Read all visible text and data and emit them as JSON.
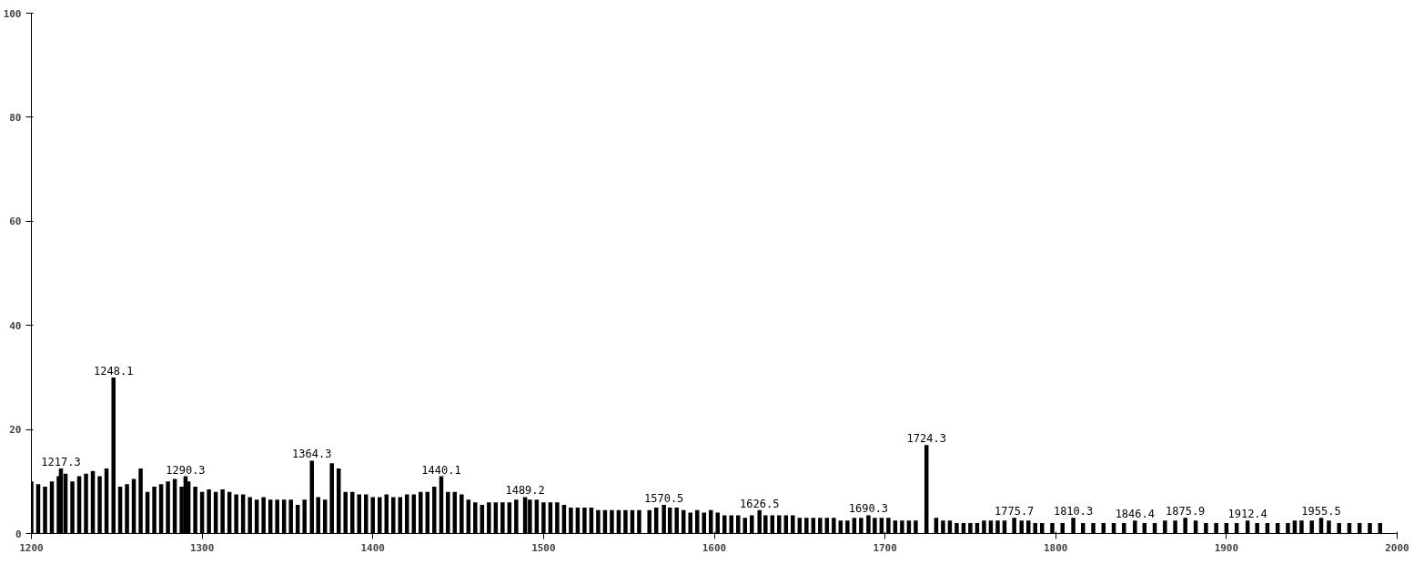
{
  "chart_data": {
    "type": "bar",
    "x": [
      1200,
      1204,
      1208,
      1212,
      1216,
      1217.3,
      1220,
      1224,
      1228,
      1232,
      1236,
      1240,
      1244,
      1248.1,
      1252,
      1256,
      1260,
      1264,
      1268,
      1272,
      1276,
      1280,
      1284,
      1288,
      1290.3,
      1292,
      1296,
      1300,
      1304,
      1308,
      1312,
      1316,
      1320,
      1324,
      1328,
      1332,
      1336,
      1340,
      1344,
      1348,
      1352,
      1356,
      1360,
      1364.3,
      1368,
      1372,
      1376,
      1380,
      1384,
      1388,
      1392,
      1396,
      1400,
      1404,
      1408,
      1412,
      1416,
      1420,
      1424,
      1428,
      1432,
      1436,
      1440.1,
      1444,
      1448,
      1452,
      1456,
      1460,
      1464,
      1468,
      1472,
      1476,
      1480,
      1484,
      1489.2,
      1492,
      1496,
      1500,
      1504,
      1508,
      1512,
      1516,
      1520,
      1524,
      1528,
      1532,
      1536,
      1540,
      1544,
      1548,
      1552,
      1556,
      1562,
      1566,
      1570.5,
      1574,
      1578,
      1582,
      1586,
      1590,
      1594,
      1598,
      1602,
      1606,
      1610,
      1614,
      1618,
      1622,
      1626.5,
      1630,
      1634,
      1638,
      1642,
      1646,
      1650,
      1654,
      1658,
      1662,
      1666,
      1670,
      1674,
      1678,
      1682,
      1686,
      1690.3,
      1694,
      1698,
      1702,
      1706,
      1710,
      1714,
      1718,
      1724.3,
      1730,
      1734,
      1738,
      1742,
      1746,
      1750,
      1754,
      1758,
      1762,
      1766,
      1770,
      1775.7,
      1780,
      1784,
      1788,
      1792,
      1798,
      1804,
      1810.3,
      1816,
      1822,
      1828,
      1834,
      1840,
      1846.4,
      1852,
      1858,
      1864,
      1870,
      1875.9,
      1882,
      1888,
      1894,
      1900,
      1906,
      1912.4,
      1918,
      1924,
      1930,
      1936,
      1940,
      1944,
      1950,
      1955.5,
      1960,
      1966,
      1972,
      1978,
      1984,
      1990
    ],
    "values": [
      10,
      9.5,
      9,
      10,
      11,
      12.5,
      11.5,
      10,
      11,
      11.5,
      12,
      11,
      12.5,
      30,
      9,
      9.5,
      10.5,
      12.5,
      8,
      9,
      9.5,
      10,
      10.5,
      9,
      11,
      10,
      9,
      8,
      8.5,
      8,
      8.5,
      8,
      7.5,
      7.5,
      7,
      6.5,
      7,
      6.5,
      6.5,
      6.5,
      6.5,
      5.5,
      6.5,
      14,
      7,
      6.5,
      13.5,
      12.5,
      8,
      8,
      7.5,
      7.5,
      7,
      7,
      7.5,
      7,
      7,
      7.5,
      7.5,
      8,
      8,
      9,
      11,
      8,
      8,
      7.5,
      6.5,
      6,
      5.5,
      6,
      6,
      6,
      6,
      6.5,
      7,
      6.5,
      6.5,
      6,
      6,
      6,
      5.5,
      5,
      5,
      5,
      5,
      4.5,
      4.5,
      4.5,
      4.5,
      4.5,
      4.5,
      4.5,
      4.5,
      5,
      5.5,
      5,
      5,
      4.5,
      4,
      4.5,
      4,
      4.5,
      4,
      3.5,
      3.5,
      3.5,
      3,
      3.5,
      4.5,
      3.5,
      3.5,
      3.5,
      3.5,
      3.5,
      3,
      3,
      3,
      3,
      3,
      3,
      2.5,
      2.5,
      3,
      3,
      3.5,
      3,
      3,
      3,
      2.5,
      2.5,
      2.5,
      2.5,
      17,
      3,
      2.5,
      2.5,
      2,
      2,
      2,
      2,
      2.5,
      2.5,
      2.5,
      2.5,
      3,
      2.5,
      2.5,
      2,
      2,
      2,
      2,
      3,
      2,
      2,
      2,
      2,
      2,
      2.5,
      2,
      2,
      2.5,
      2.5,
      3,
      2.5,
      2,
      2,
      2,
      2,
      2.5,
      2,
      2,
      2,
      2,
      2.5,
      2.5,
      2.5,
      3,
      2.5,
      2,
      2,
      2,
      2,
      2
    ],
    "color": "#000000",
    "xlim": [
      1200,
      2000
    ],
    "xticks": [
      1200,
      1300,
      1400,
      1500,
      1600,
      1700,
      1800,
      1900,
      2000
    ],
    "ylim": [
      0,
      100
    ],
    "yticks": [
      0,
      20,
      40,
      60,
      80,
      100
    ],
    "grid": false,
    "annotations": [
      {
        "text": "1217.3",
        "x": 1217.3,
        "y": 12.5
      },
      {
        "text": "1248.1",
        "x": 1248.1,
        "y": 30
      },
      {
        "text": "1290.3",
        "x": 1290.3,
        "y": 11
      },
      {
        "text": "1364.3",
        "x": 1364.3,
        "y": 14
      },
      {
        "text": "1440.1",
        "x": 1440.1,
        "y": 11
      },
      {
        "text": "1489.2",
        "x": 1489.2,
        "y": 7
      },
      {
        "text": "1570.5",
        "x": 1570.5,
        "y": 5.5
      },
      {
        "text": "1626.5",
        "x": 1626.5,
        "y": 4.5
      },
      {
        "text": "1690.3",
        "x": 1690.3,
        "y": 3.5
      },
      {
        "text": "1724.3",
        "x": 1724.3,
        "y": 17
      },
      {
        "text": "1775.7",
        "x": 1775.7,
        "y": 3
      },
      {
        "text": "1810.3",
        "x": 1810.3,
        "y": 3
      },
      {
        "text": "1846.4",
        "x": 1846.4,
        "y": 2.5
      },
      {
        "text": "1875.9",
        "x": 1875.9,
        "y": 3
      },
      {
        "text": "1912.4",
        "x": 1912.4,
        "y": 2.5
      },
      {
        "text": "1955.5",
        "x": 1955.5,
        "y": 3
      }
    ]
  }
}
